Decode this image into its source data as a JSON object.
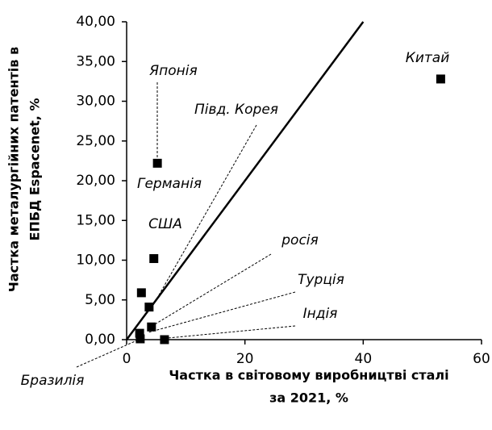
{
  "chart_data": {
    "type": "scatter",
    "xlabel": [
      "Частка в  світовому виробництві сталі",
      "за 2021, %"
    ],
    "ylabel": [
      "Частка металургійних патентів в",
      "ЕПБД Espacenet, %"
    ],
    "labels": [
      "Китай",
      "Японія",
      "США",
      "Германія",
      "Півд. Корея",
      "росія",
      "Турція",
      "Індія",
      "Бразилія"
    ],
    "x": [
      53.1,
      5.2,
      4.6,
      2.5,
      3.8,
      4.2,
      2.2,
      6.4,
      2.3
    ],
    "values": [
      32.8,
      22.2,
      10.2,
      5.9,
      4.1,
      1.6,
      0.8,
      0.0,
      0.1
    ],
    "color": "#000000",
    "xlim": [
      0,
      60
    ],
    "xticks": [
      0,
      20,
      40,
      60
    ],
    "ylim": [
      0,
      40
    ],
    "yticks": [
      {
        "value": 0,
        "label": "0,00"
      },
      {
        "value": 5,
        "label": "5,00"
      },
      {
        "value": 10,
        "label": "10,00"
      },
      {
        "value": 15,
        "label": "15,00"
      },
      {
        "value": 20,
        "label": "20,00"
      },
      {
        "value": 25,
        "label": "25,00"
      },
      {
        "value": 30,
        "label": "30,00"
      },
      {
        "value": 35,
        "label": "35,00"
      },
      {
        "value": 40,
        "label": "40,00"
      }
    ],
    "grid": false
  }
}
